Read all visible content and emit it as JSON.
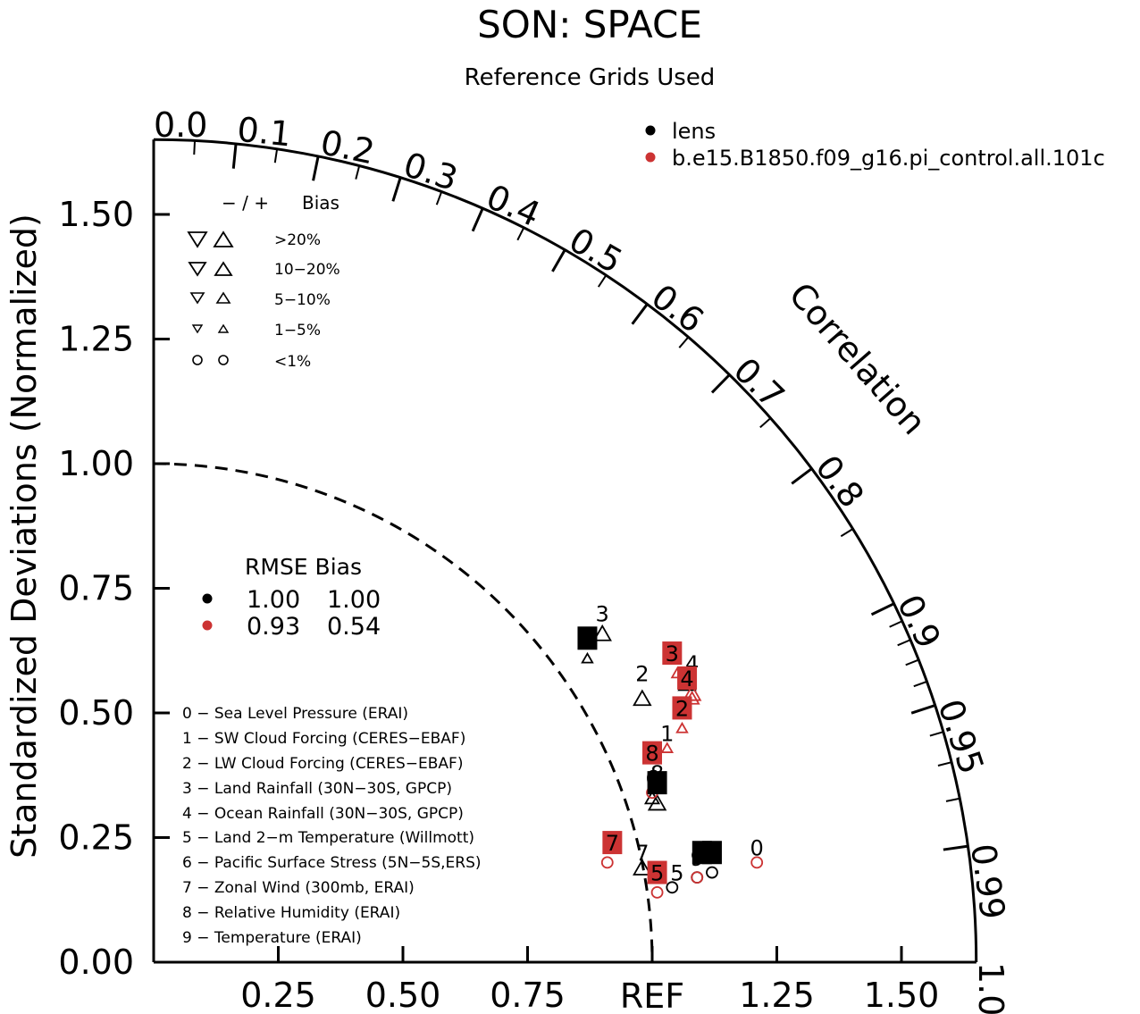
{
  "title": "SON: SPACE",
  "subtitle": "Reference Grids Used",
  "ylabel": "Standardized Deviations (Normalized)",
  "corr_label": "Correlation",
  "ref_label": "REF",
  "legend_cases": [
    {
      "name": "lens",
      "color": "#000000"
    },
    {
      "name": "b.e15.B1850.f09_g16.pi_control.all.101c",
      "color": "#cc3333"
    }
  ],
  "bias_legend": {
    "header_signs": "− / +",
    "header_bias": "Bias",
    "rows": [
      ">20%",
      "10−20%",
      "5−10%",
      "1−5%",
      "<1%"
    ]
  },
  "rmse_table": {
    "header": "RMSE Bias",
    "rows": [
      {
        "rmse": "1.00",
        "bias": "1.00",
        "color": "#000000"
      },
      {
        "rmse": "0.93",
        "bias": "0.54",
        "color": "#cc3333"
      }
    ]
  },
  "variables": [
    "0 − Sea Level Pressure (ERAI)",
    "1 − SW Cloud Forcing (CERES−EBAF)",
    "2 − LW Cloud Forcing (CERES−EBAF)",
    "3 − Land Rainfall (30N−30S, GPCP)",
    "4 − Ocean Rainfall (30N−30S, GPCP)",
    "5 − Land 2−m Temperature (Willmott)",
    "6 − Pacific Surface Stress (5N−5S,ERS)",
    "7 − Zonal Wind (300mb, ERAI)",
    "8 − Relative Humidity (ERAI)",
    "9 − Temperature (ERAI)"
  ],
  "chart_data": {
    "type": "scatter",
    "title": "SON: SPACE",
    "ylabel": "Standardized Deviations (Normalized)",
    "y_ticks": [
      "0.00",
      "0.25",
      "0.50",
      "0.75",
      "1.00",
      "1.25",
      "1.50"
    ],
    "x_ticks": [
      "0.25",
      "0.50",
      "0.75",
      "REF",
      "1.25",
      "1.50"
    ],
    "corr_ticks": [
      "0.0",
      "0.1",
      "0.2",
      "0.3",
      "0.4",
      "0.5",
      "0.6",
      "0.7",
      "0.8",
      "0.9",
      "0.95",
      "0.99",
      "1.0"
    ],
    "corr_values": [
      0.0,
      0.1,
      0.2,
      0.3,
      0.4,
      0.5,
      0.6,
      0.7,
      0.8,
      0.9,
      0.95,
      0.99,
      1.0
    ],
    "xlim": [
      0,
      1.65
    ],
    "ylim": [
      0,
      1.65
    ],
    "series": [
      {
        "name": "lens",
        "color": "#000000",
        "points": [
          {
            "id": "0",
            "x": 1.09,
            "y": 0.17,
            "bias_marker": "circle"
          },
          {
            "id": "1",
            "x": 0.87,
            "y": 0.61,
            "bias_marker": "up-small"
          },
          {
            "id": "2",
            "x": 0.98,
            "y": 0.53,
            "bias_marker": "up-large"
          },
          {
            "id": "3",
            "x": 0.9,
            "y": 0.66,
            "bias_marker": "up-large"
          },
          {
            "id": "4",
            "x": 1.07,
            "y": 0.56,
            "bias_marker": "up-large"
          },
          {
            "id": "5",
            "x": 1.04,
            "y": 0.15,
            "bias_marker": "circle"
          },
          {
            "id": "6",
            "x": 1.01,
            "y": 0.32,
            "bias_marker": "up-large"
          },
          {
            "id": "7",
            "x": 0.98,
            "y": 0.19,
            "bias_marker": "up-large"
          },
          {
            "id": "8",
            "x": 1.0,
            "y": 0.33,
            "bias_marker": "up-mid"
          },
          {
            "id": "9",
            "x": 1.12,
            "y": 0.18,
            "bias_marker": "circle"
          }
        ]
      },
      {
        "name": "b.e15.B1850.f09_g16.pi_control.all.101c",
        "color": "#cc3333",
        "points": [
          {
            "id": "0",
            "x": 1.21,
            "y": 0.2,
            "bias_marker": "circle"
          },
          {
            "id": "1",
            "x": 1.06,
            "y": 0.47,
            "bias_marker": "up-small"
          },
          {
            "id": "2",
            "x": 1.08,
            "y": 0.53,
            "bias_marker": "up-mid"
          },
          {
            "id": "3",
            "x": 1.05,
            "y": 0.58,
            "bias_marker": "up-small"
          },
          {
            "id": "4",
            "x": 1.08,
            "y": 0.54,
            "bias_marker": "up-large"
          },
          {
            "id": "5",
            "x": 1.01,
            "y": 0.14,
            "bias_marker": "circle"
          },
          {
            "id": "6",
            "x": 1.0,
            "y": 0.34,
            "bias_marker": "circle"
          },
          {
            "id": "7",
            "x": 0.91,
            "y": 0.2,
            "bias_marker": "circle"
          },
          {
            "id": "8",
            "x": 1.03,
            "y": 0.43,
            "bias_marker": "up-small"
          },
          {
            "id": "9",
            "x": 1.09,
            "y": 0.17,
            "bias_marker": "circle"
          }
        ]
      }
    ],
    "labels_boxed": [
      {
        "series": 0,
        "id": "0",
        "x": 1.1,
        "y": 0.22
      },
      {
        "series": 0,
        "id": "1",
        "x": 0.87,
        "y": 0.65
      },
      {
        "series": 0,
        "id": "6",
        "x": 1.01,
        "y": 0.36
      },
      {
        "series": 0,
        "id": "9",
        "x": 1.12,
        "y": 0.22
      },
      {
        "series": 1,
        "id": "2",
        "x": 1.06,
        "y": 0.51
      },
      {
        "series": 1,
        "id": "3",
        "x": 1.04,
        "y": 0.62
      },
      {
        "series": 1,
        "id": "4",
        "x": 1.07,
        "y": 0.57
      },
      {
        "series": 1,
        "id": "5",
        "x": 1.01,
        "y": 0.18
      },
      {
        "series": 1,
        "id": "7",
        "x": 0.92,
        "y": 0.24
      },
      {
        "series": 1,
        "id": "8",
        "x": 1.0,
        "y": 0.42
      }
    ],
    "labels_plain": [
      {
        "series": 0,
        "id": "2",
        "x": 0.98,
        "y": 0.58
      },
      {
        "series": 0,
        "id": "3",
        "x": 0.9,
        "y": 0.7
      },
      {
        "series": 0,
        "id": "4",
        "x": 1.08,
        "y": 0.6
      },
      {
        "series": 0,
        "id": "5",
        "x": 1.05,
        "y": 0.18
      },
      {
        "series": 0,
        "id": "7",
        "x": 0.98,
        "y": 0.22
      },
      {
        "series": 0,
        "id": "8",
        "x": 1.01,
        "y": 0.38
      },
      {
        "series": 1,
        "id": "0",
        "x": 1.21,
        "y": 0.23
      },
      {
        "series": 1,
        "id": "1",
        "x": 1.03,
        "y": 0.46
      },
      {
        "series": 1,
        "id": "6",
        "x": 1.0,
        "y": 0.37
      },
      {
        "series": 1,
        "id": "9",
        "x": 1.09,
        "y": 0.21
      }
    ]
  }
}
